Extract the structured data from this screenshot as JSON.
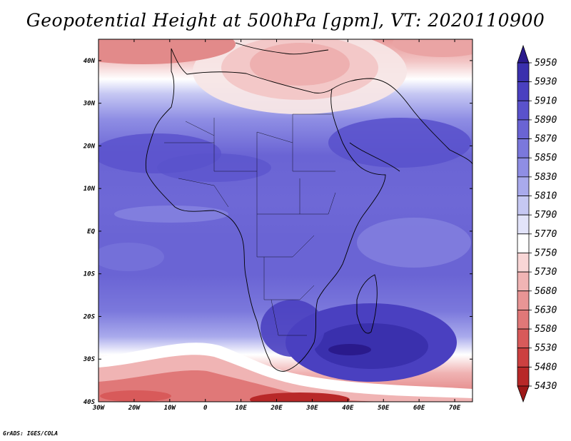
{
  "title": "Geopotential Height at 500hPa [gpm], VT: 2020110900",
  "footer": "GrADS: IGES/COLA",
  "chart_data": {
    "type": "heatmap",
    "variable": "Geopotential Height at 500hPa",
    "unit": "gpm",
    "valid_time": "2020110900",
    "lon_range": [
      -30,
      75
    ],
    "lat_range": [
      -40,
      45
    ],
    "x_ticks": [
      "30W",
      "20W",
      "10W",
      "0",
      "10E",
      "20E",
      "30E",
      "40E",
      "50E",
      "60E",
      "70E"
    ],
    "y_ticks": [
      "40N",
      "30N",
      "20N",
      "10N",
      "EQ",
      "10S",
      "20S",
      "30S",
      "40S"
    ],
    "colorbar_levels": [
      "5950",
      "5930",
      "5910",
      "5890",
      "5870",
      "5850",
      "5830",
      "5810",
      "5790",
      "5770",
      "5750",
      "5730",
      "5680",
      "5630",
      "5580",
      "5530",
      "5480",
      "5430"
    ],
    "colorbar_colors": [
      "#2a1a8c",
      "#3a30ad",
      "#4a40c0",
      "#5a52cc",
      "#6a64d4",
      "#7b78dc",
      "#8f8ee4",
      "#a9aaec",
      "#c6c8f3",
      "#e2e3f9",
      "#ffffff",
      "#f8d6d6",
      "#f0b4b4",
      "#e89595",
      "#e07878",
      "#d85a5a",
      "#cc4040",
      "#b82828",
      "#9e1818"
    ],
    "colorbar_legend": "right, vertical, triangular ends",
    "features": {
      "subtropical_ridge_max": "5890-5910 over West Africa/Sahara and southern Indian Ocean (~28S, 40-55E)",
      "mediterranean_trough_min": "5730-5750 over Eastern Mediterranean/Turkey",
      "southern_trough_min": "5430-5530 near 40S, 15-30E",
      "coastlines": true,
      "country_borders": true
    }
  }
}
